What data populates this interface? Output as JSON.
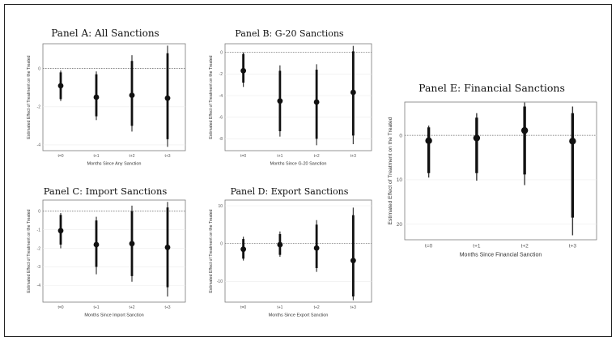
{
  "chart_data": [
    {
      "id": "A",
      "type": "scatter",
      "title": "Panel A: All  Sanctions",
      "xlabel": "Months Since Any Sanction",
      "ylabel": "Estimated Effect of Treatment on the Treated",
      "categories": [
        "t=0",
        "t+1",
        "t+2",
        "t+3"
      ],
      "yticks": [
        0,
        -2,
        -4
      ],
      "ytick_labels": [
        "0",
        "-2",
        "-4"
      ],
      "ylim": [
        -4.3,
        1.3
      ],
      "reference_line": 0,
      "points": [
        {
          "x": "t=0",
          "y": -0.9,
          "ci_inner": [
            -1.6,
            -0.2
          ],
          "ci_outer": [
            -1.7,
            -0.1
          ]
        },
        {
          "x": "t+1",
          "y": -1.5,
          "ci_inner": [
            -2.5,
            -0.3
          ],
          "ci_outer": [
            -2.7,
            -0.15
          ]
        },
        {
          "x": "t+2",
          "y": -1.4,
          "ci_inner": [
            -3.0,
            0.4
          ],
          "ci_outer": [
            -3.3,
            0.7
          ]
        },
        {
          "x": "t+3",
          "y": -1.55,
          "ci_inner": [
            -3.7,
            0.8
          ],
          "ci_outer": [
            -4.1,
            1.2
          ]
        }
      ]
    },
    {
      "id": "B",
      "type": "scatter",
      "title": "Panel B: G-20 Sanctions",
      "xlabel": "Months Since G-20 Sanction",
      "ylabel": "Estimated Effect of Treatment on the Treated",
      "categories": [
        "t=0",
        "t+1",
        "t+2",
        "t+3"
      ],
      "yticks": [
        0,
        -2,
        -4,
        -6,
        -8
      ],
      "ytick_labels": [
        "0",
        "-2",
        "-4",
        "-6",
        "-8"
      ],
      "ylim": [
        -9.1,
        0.8
      ],
      "reference_line": 0,
      "points": [
        {
          "x": "t=0",
          "y": -1.7,
          "ci_inner": [
            -2.8,
            -0.15
          ],
          "ci_outer": [
            -3.2,
            0.0
          ]
        },
        {
          "x": "t+1",
          "y": -4.5,
          "ci_inner": [
            -7.3,
            -1.7
          ],
          "ci_outer": [
            -7.8,
            -1.2
          ]
        },
        {
          "x": "t+2",
          "y": -4.6,
          "ci_inner": [
            -8.0,
            -1.6
          ],
          "ci_outer": [
            -8.6,
            -1.1
          ]
        },
        {
          "x": "t+3",
          "y": -3.7,
          "ci_inner": [
            -7.7,
            0.1
          ],
          "ci_outer": [
            -8.5,
            0.6
          ]
        }
      ]
    },
    {
      "id": "C",
      "type": "scatter",
      "title": "Panel C: Import Sanctions",
      "xlabel": "Months Since Import Sanction",
      "ylabel": "Estimated Effect of Treatment on the Treated",
      "categories": [
        "t=0",
        "t+1",
        "t+2",
        "t+3"
      ],
      "yticks": [
        0,
        -1,
        -2,
        -3,
        -4
      ],
      "ytick_labels": [
        "0",
        "-1",
        "-2",
        "-3",
        "-4"
      ],
      "ylim": [
        -4.9,
        0.6
      ],
      "reference_line": 0,
      "points": [
        {
          "x": "t=0",
          "y": -1.05,
          "ci_inner": [
            -1.8,
            -0.2
          ],
          "ci_outer": [
            -2.0,
            -0.1
          ]
        },
        {
          "x": "t+1",
          "y": -1.8,
          "ci_inner": [
            -3.0,
            -0.5
          ],
          "ci_outer": [
            -3.4,
            -0.3
          ]
        },
        {
          "x": "t+2",
          "y": -1.75,
          "ci_inner": [
            -3.5,
            0.0
          ],
          "ci_outer": [
            -3.8,
            0.3
          ]
        },
        {
          "x": "t+3",
          "y": -1.95,
          "ci_inner": [
            -4.1,
            0.2
          ],
          "ci_outer": [
            -4.6,
            0.5
          ]
        }
      ]
    },
    {
      "id": "D",
      "type": "scatter",
      "title": "Panel D: Export Sanctions",
      "xlabel": "Months Since Export Sanction",
      "ylabel": "Estimated Effect of Treatment on the Treated",
      "categories": [
        "t=0",
        "t+1",
        "t+2",
        "t+3"
      ],
      "yticks": [
        10,
        0,
        -10
      ],
      "ytick_labels": [
        "10",
        "0",
        "-10"
      ],
      "ylim": [
        -15.5,
        11.5
      ],
      "reference_line": 0,
      "points": [
        {
          "x": "t=0",
          "y": -1.5,
          "ci_inner": [
            -4.0,
            1.2
          ],
          "ci_outer": [
            -4.5,
            1.8
          ]
        },
        {
          "x": "t+1",
          "y": -0.3,
          "ci_inner": [
            -3.0,
            2.5
          ],
          "ci_outer": [
            -3.5,
            3.2
          ]
        },
        {
          "x": "t+2",
          "y": -1.2,
          "ci_inner": [
            -6.5,
            5.0
          ],
          "ci_outer": [
            -7.5,
            6.2
          ]
        },
        {
          "x": "t+3",
          "y": -4.5,
          "ci_inner": [
            -14.0,
            7.5
          ],
          "ci_outer": [
            -15.0,
            9.5
          ]
        }
      ]
    },
    {
      "id": "E",
      "type": "scatter",
      "title": "Panel E: Financial Sanctions",
      "xlabel": "Months Since Financial Sanction",
      "ylabel": "Estimated Effect of Treatment on the Treated",
      "categories": [
        "t=0",
        "t+1",
        "t+2",
        "t+3"
      ],
      "yticks": [
        0,
        10,
        20
      ],
      "ytick_labels": [
        "0",
        "10",
        "20"
      ],
      "ylim": [
        23.5,
        -7.5
      ],
      "reference_line": 0,
      "points": [
        {
          "x": "t=0",
          "y": 1.2,
          "ci_inner": [
            -1.8,
            8.5
          ],
          "ci_outer": [
            -2.2,
            9.5
          ]
        },
        {
          "x": "t+1",
          "y": 0.6,
          "ci_inner": [
            -4.0,
            8.5
          ],
          "ci_outer": [
            -5.0,
            10.2
          ]
        },
        {
          "x": "t+2",
          "y": -1.1,
          "ci_inner": [
            -6.5,
            8.8
          ],
          "ci_outer": [
            -7.4,
            11.2
          ]
        },
        {
          "x": "t+3",
          "y": 1.3,
          "ci_inner": [
            -5.0,
            18.5
          ],
          "ci_outer": [
            -6.5,
            22.5
          ]
        }
      ]
    }
  ]
}
